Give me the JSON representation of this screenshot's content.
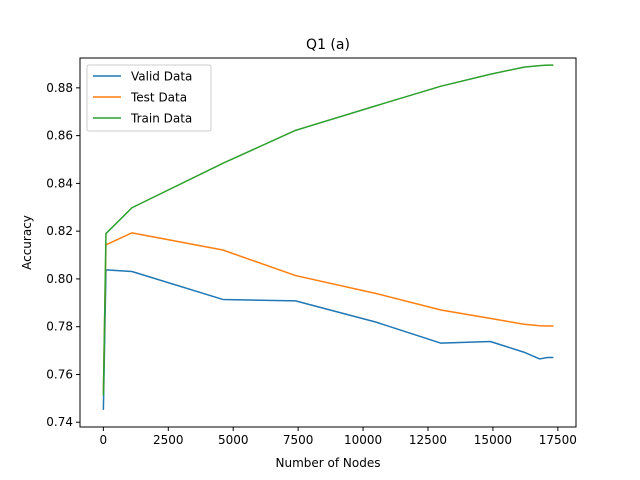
{
  "chart_data": {
    "type": "line",
    "title": "Q1 (a)",
    "xlabel": "Number of Nodes",
    "ylabel": "Accuracy",
    "xlim": [
      -900,
      18200
    ],
    "ylim": [
      0.738,
      0.8925
    ],
    "xticks": [
      0,
      2500,
      5000,
      7500,
      10000,
      12500,
      15000,
      17500
    ],
    "xtick_labels": [
      "0",
      "2500",
      "5000",
      "7500",
      "10000",
      "12500",
      "15000",
      "17500"
    ],
    "yticks": [
      0.74,
      0.76,
      0.78,
      0.8,
      0.82,
      0.84,
      0.86,
      0.88
    ],
    "ytick_labels": [
      "0.74",
      "0.76",
      "0.78",
      "0.80",
      "0.82",
      "0.84",
      "0.86",
      "0.88"
    ],
    "grid": false,
    "legend_position": "top-left",
    "series": [
      {
        "name": "Valid Data",
        "color": "#1f77b4",
        "x": [
          1,
          100,
          1100,
          4600,
          7400,
          10500,
          13000,
          14900,
          16200,
          16800,
          17100,
          17300
        ],
        "y": [
          0.7455,
          0.8038,
          0.8031,
          0.7914,
          0.7908,
          0.7819,
          0.7731,
          0.7738,
          0.7693,
          0.7665,
          0.7671,
          0.7671
        ]
      },
      {
        "name": "Test Data",
        "color": "#ff7f0e",
        "x": [
          1,
          100,
          1100,
          4600,
          7400,
          10500,
          13000,
          14900,
          16200,
          16800,
          17100,
          17300
        ],
        "y": [
          0.7532,
          0.8143,
          0.8193,
          0.8121,
          0.8014,
          0.7939,
          0.787,
          0.7835,
          0.781,
          0.7804,
          0.7803,
          0.7803
        ]
      },
      {
        "name": "Train Data",
        "color": "#2ca02c",
        "x": [
          1,
          100,
          1100,
          4600,
          7400,
          10500,
          13000,
          14900,
          16200,
          16800,
          17100,
          17300
        ],
        "y": [
          0.7515,
          0.819,
          0.8298,
          0.8484,
          0.8622,
          0.8725,
          0.8807,
          0.8857,
          0.8887,
          0.8893,
          0.8895,
          0.8895
        ]
      }
    ]
  }
}
